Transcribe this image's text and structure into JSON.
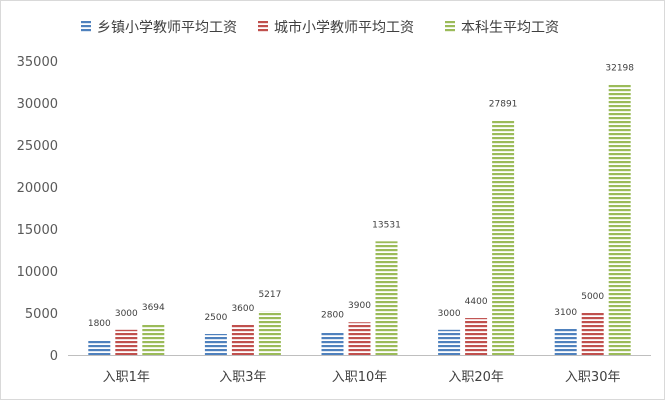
{
  "chart_data": {
    "type": "bar",
    "title": "",
    "xlabel": "",
    "ylabel": "",
    "categories": [
      "入职1年",
      "入职3年",
      "入职10年",
      "入职20年",
      "入职30年"
    ],
    "series": [
      {
        "name": "乡镇小学教师平均工资",
        "values": [
          1800,
          2500,
          2800,
          3000,
          3100
        ],
        "color": "#4f81bd"
      },
      {
        "name": "城市小学教师平均工资",
        "values": [
          3000,
          3600,
          3900,
          4400,
          5000
        ],
        "color": "#c0504d"
      },
      {
        "name": "本科生平均工资",
        "values": [
          3694,
          5217,
          13531,
          27891,
          32198
        ],
        "color": "#9bbb59"
      }
    ],
    "ylim": [
      0,
      35000
    ],
    "yticks": [
      0,
      5000,
      10000,
      15000,
      20000,
      25000,
      30000,
      35000
    ],
    "grid": false,
    "legend_position": "top",
    "bar_pattern": "horizontal-stripes"
  }
}
